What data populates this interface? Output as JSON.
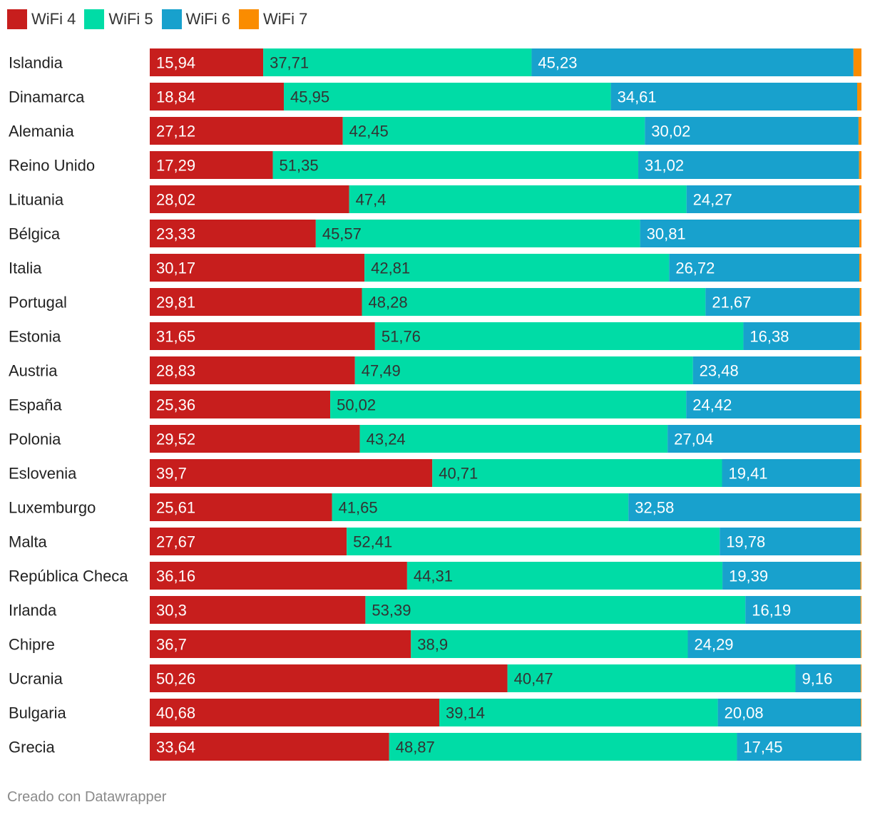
{
  "chart_data": {
    "type": "bar",
    "orientation": "horizontal-stacked",
    "categories": [
      "Islandia",
      "Dinamarca",
      "Alemania",
      "Reino Unido",
      "Lituania",
      "Bélgica",
      "Italia",
      "Portugal",
      "Estonia",
      "Austria",
      "España",
      "Polonia",
      "Eslovenia",
      "Luxemburgo",
      "Malta",
      "República Checa",
      "Irlanda",
      "Chipre",
      "Ucrania",
      "Bulgaria",
      "Grecia"
    ],
    "series": [
      {
        "name": "WiFi 4",
        "color": "#c71e1d",
        "label_color": "#ffffff",
        "values": [
          15.94,
          18.84,
          27.12,
          17.29,
          28.02,
          23.33,
          30.17,
          29.81,
          31.65,
          28.83,
          25.36,
          29.52,
          39.7,
          25.61,
          27.67,
          36.16,
          30.3,
          36.7,
          50.26,
          40.68,
          33.64
        ],
        "labels": [
          "15,94",
          "18,84",
          "27,12",
          "17,29",
          "28,02",
          "23,33",
          "30,17",
          "29,81",
          "31,65",
          "28,83",
          "25,36",
          "29,52",
          "39,7",
          "25,61",
          "27,67",
          "36,16",
          "30,3",
          "36,7",
          "50,26",
          "40,68",
          "33,64"
        ]
      },
      {
        "name": "WiFi 5",
        "color": "#00dca6",
        "label_color": "#333333",
        "values": [
          37.71,
          45.95,
          42.45,
          51.35,
          47.4,
          45.57,
          42.81,
          48.28,
          51.76,
          47.49,
          50.02,
          43.24,
          40.71,
          41.65,
          52.41,
          44.31,
          53.39,
          38.9,
          40.47,
          39.14,
          48.87
        ],
        "labels": [
          "37,71",
          "45,95",
          "42,45",
          "51,35",
          "47,4",
          "45,57",
          "42,81",
          "48,28",
          "51,76",
          "47,49",
          "50,02",
          "43,24",
          "40,71",
          "41,65",
          "52,41",
          "44,31",
          "53,39",
          "38,9",
          "40,47",
          "39,14",
          "48,87"
        ]
      },
      {
        "name": "WiFi 6",
        "color": "#18a1cd",
        "label_color": "#ffffff",
        "values": [
          45.23,
          34.61,
          30.02,
          31.02,
          24.27,
          30.81,
          26.72,
          21.67,
          16.38,
          23.48,
          24.42,
          27.04,
          19.41,
          32.58,
          19.78,
          19.39,
          16.19,
          24.29,
          9.16,
          20.08,
          17.45
        ],
        "labels": [
          "45,23",
          "34,61",
          "30,02",
          "31,02",
          "24,27",
          "30,81",
          "26,72",
          "21,67",
          "16,38",
          "23,48",
          "24,42",
          "27,04",
          "19,41",
          "32,58",
          "19,78",
          "19,39",
          "16,19",
          "24,29",
          "9,16",
          "20,08",
          "17,45"
        ]
      },
      {
        "name": "WiFi 7",
        "color": "#fa8c00",
        "label_color": "#333333",
        "values": [
          1.12,
          0.6,
          0.41,
          0.34,
          0.31,
          0.29,
          0.3,
          0.24,
          0.21,
          0.2,
          0.2,
          0.2,
          0.18,
          0.16,
          0.14,
          0.14,
          0.12,
          0.11,
          0.11,
          0.1,
          0.04
        ]
      }
    ],
    "title": "",
    "xlabel": "",
    "ylabel": "",
    "xlim": [
      0,
      100
    ],
    "legend_position": "top-left"
  },
  "legend": [
    {
      "label": "WiFi 4",
      "color": "#c71e1d"
    },
    {
      "label": "WiFi 5",
      "color": "#00dca6"
    },
    {
      "label": "WiFi 6",
      "color": "#18a1cd"
    },
    {
      "label": "WiFi 7",
      "color": "#fa8c00"
    }
  ],
  "footer": {
    "text": "Creado con Datawrapper"
  }
}
